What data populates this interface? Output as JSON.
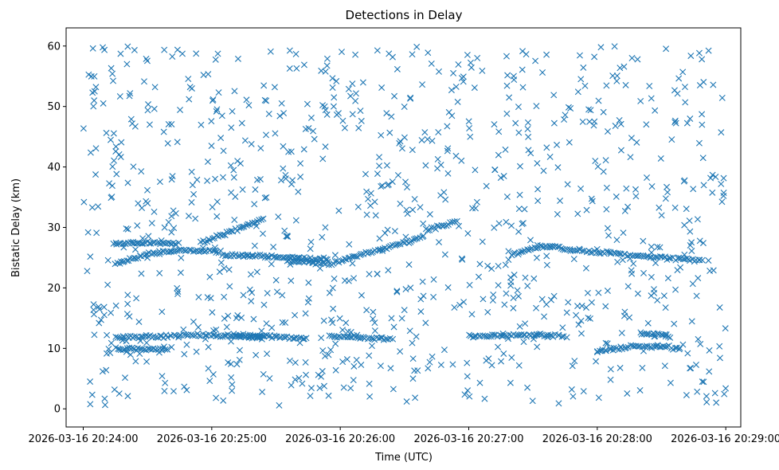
{
  "chart_data": {
    "type": "scatter",
    "title": "Detections in Delay",
    "xlabel": "Time (UTC)",
    "ylabel": "Bistatic Delay (km)",
    "marker": "x",
    "color": "#1f77b4",
    "grid": false,
    "legend": "none",
    "xlim": [
      "2026-03-16 20:23:52",
      "2026-03-16 20:29:07"
    ],
    "ylim": [
      -3,
      63
    ],
    "x_ticks": [
      "2026-03-16 20:24:00",
      "2026-03-16 20:25:00",
      "2026-03-16 20:26:00",
      "2026-03-16 20:27:00",
      "2026-03-16 20:28:00",
      "2026-03-16 20:29:00"
    ],
    "y_ticks": [
      "0",
      "10",
      "20",
      "30",
      "40",
      "50",
      "60"
    ],
    "tracks": [
      {
        "time": [
          "20:24:15",
          "20:24:30",
          "20:24:45",
          "20:24:55",
          "20:25:05"
        ],
        "delay": [
          24,
          25.5,
          26.3,
          26.1,
          26.0
        ]
      },
      {
        "time": [
          "20:24:55",
          "20:25:10",
          "20:25:25"
        ],
        "delay": [
          27.5,
          29.5,
          31.5
        ]
      },
      {
        "time": [
          "20:24:15",
          "20:24:30",
          "20:24:45"
        ],
        "delay": [
          27.3,
          27.5,
          27.4
        ]
      },
      {
        "time": [
          "20:25:05",
          "20:25:25",
          "20:25:55"
        ],
        "delay": [
          25.5,
          25.2,
          24.7
        ]
      },
      {
        "time": [
          "20:25:35",
          "20:25:55",
          "20:26:10",
          "20:26:30",
          "20:26:40"
        ],
        "delay": [
          24.5,
          24,
          25.5,
          27.5,
          28.5
        ]
      },
      {
        "time": [
          "20:26:40",
          "20:26:55"
        ],
        "delay": [
          29.5,
          31
        ]
      },
      {
        "time": [
          "20:27:20",
          "20:27:35",
          "20:27:55",
          "20:28:15",
          "20:28:30",
          "20:28:50"
        ],
        "delay": [
          25.5,
          27,
          26,
          25.5,
          25,
          24.5
        ]
      },
      {
        "time": [
          "20:24:15",
          "20:24:35",
          "20:24:55",
          "20:25:30",
          "20:25:45"
        ],
        "delay": [
          11.8,
          12.0,
          12.2,
          12.0,
          11.5
        ]
      },
      {
        "time": [
          "20:24:15",
          "20:24:40"
        ],
        "delay": [
          10,
          9.8
        ]
      },
      {
        "time": [
          "20:25:10",
          "20:25:25"
        ],
        "delay": [
          12.0,
          11.8
        ]
      },
      {
        "time": [
          "20:25:55",
          "20:26:10",
          "20:26:25"
        ],
        "delay": [
          12.0,
          11.8,
          11.5
        ]
      },
      {
        "time": [
          "20:27:00",
          "20:27:30"
        ],
        "delay": [
          12.0,
          12.2
        ]
      },
      {
        "time": [
          "20:27:30",
          "20:27:45"
        ],
        "delay": [
          12.3,
          12.0
        ]
      },
      {
        "time": [
          "20:28:00",
          "20:28:20",
          "20:28:40"
        ],
        "delay": [
          9.5,
          10.5,
          10.0
        ]
      },
      {
        "time": [
          "20:28:20",
          "20:28:35"
        ],
        "delay": [
          12.5,
          12.0
        ]
      }
    ],
    "noise": {
      "count": 950,
      "time_range": [
        "20:24:00",
        "20:29:00"
      ],
      "delay_range": [
        0.5,
        60
      ]
    }
  }
}
